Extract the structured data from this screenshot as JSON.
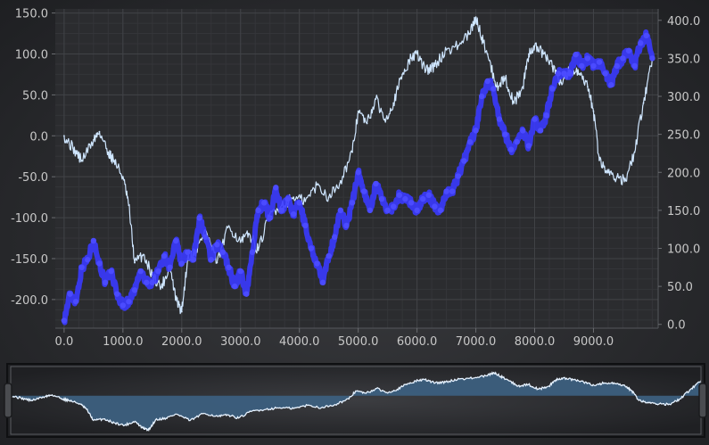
{
  "chart_data": {
    "type": "line",
    "title": "",
    "xlabel": "",
    "ylabel": "",
    "grid": true,
    "legend": "none",
    "x_axis": {
      "range": [
        -150,
        10100
      ],
      "tick_values": [
        0,
        1000,
        2000,
        3000,
        4000,
        5000,
        6000,
        7000,
        8000,
        9000
      ],
      "tick_labels": [
        "0.0",
        "1000.0",
        "2000.0",
        "3000.0",
        "4000.0",
        "5000.0",
        "6000.0",
        "7000.0",
        "8000.0",
        "9000.0"
      ]
    },
    "y_axis_left": {
      "range": [
        -235,
        155
      ],
      "tick_values": [
        150,
        100,
        50,
        0,
        -50,
        -100,
        -150,
        -200
      ],
      "tick_labels": [
        "150.0",
        "100.0",
        "50.0",
        "0.0",
        "-50.0",
        "-100.0",
        "-150.0",
        "-200.0"
      ]
    },
    "y_axis_right": {
      "range": [
        -5,
        415
      ],
      "tick_values": [
        400,
        350,
        300,
        250,
        200,
        150,
        100,
        50,
        0
      ],
      "tick_labels": [
        "400.0",
        "350.0",
        "300.0",
        "250.0",
        "200.0",
        "150.0",
        "100.0",
        "50.0",
        "0.0"
      ]
    },
    "series": [
      {
        "axis": "left",
        "color": "#cfe6ff",
        "style": "line",
        "x": [
          0,
          150,
          300,
          500,
          600,
          750,
          850,
          1000,
          1100,
          1200,
          1350,
          1500,
          1650,
          1800,
          1900,
          2000,
          2100,
          2250,
          2400,
          2600,
          2800,
          3000,
          3150,
          3300,
          3500,
          3700,
          3900,
          4100,
          4300,
          4500,
          4700,
          4900,
          5000,
          5150,
          5300,
          5450,
          5600,
          5750,
          5900,
          6000,
          6150,
          6300,
          6500,
          6700,
          6900,
          7000,
          7100,
          7200,
          7350,
          7500,
          7650,
          7800,
          7900,
          8000,
          8150,
          8300,
          8450,
          8600,
          8750,
          8900,
          9000,
          9100,
          9250,
          9400,
          9550,
          9700,
          9850,
          10000
        ],
        "y": [
          0,
          -15,
          -30,
          -5,
          5,
          -20,
          -30,
          -50,
          -85,
          -155,
          -145,
          -170,
          -185,
          -160,
          -200,
          -215,
          -150,
          -140,
          -115,
          -155,
          -110,
          -130,
          -120,
          -140,
          -95,
          -85,
          -75,
          -80,
          -60,
          -75,
          -55,
          -20,
          30,
          15,
          45,
          20,
          40,
          75,
          95,
          100,
          80,
          85,
          105,
          110,
          125,
          145,
          120,
          100,
          60,
          70,
          40,
          60,
          100,
          110,
          100,
          85,
          65,
          80,
          75,
          60,
          30,
          -30,
          -45,
          -50,
          -55,
          -20,
          40,
          95
        ]
      },
      {
        "axis": "right",
        "color": "#3a3aff",
        "style": "thick-markers",
        "x": [
          0,
          100,
          200,
          300,
          400,
          500,
          600,
          700,
          800,
          900,
          1000,
          1100,
          1200,
          1300,
          1400,
          1500,
          1600,
          1700,
          1800,
          1900,
          2000,
          2100,
          2200,
          2300,
          2400,
          2500,
          2600,
          2700,
          2800,
          2900,
          3000,
          3100,
          3200,
          3300,
          3400,
          3500,
          3600,
          3700,
          3800,
          3900,
          4000,
          4100,
          4200,
          4300,
          4400,
          4500,
          4600,
          4700,
          4800,
          4900,
          5000,
          5100,
          5200,
          5300,
          5400,
          5500,
          5600,
          5700,
          5800,
          5900,
          6000,
          6100,
          6200,
          6300,
          6400,
          6500,
          6600,
          6700,
          6800,
          6900,
          7000,
          7100,
          7200,
          7300,
          7400,
          7500,
          7600,
          7700,
          7800,
          7900,
          8000,
          8100,
          8200,
          8300,
          8400,
          8500,
          8600,
          8700,
          8800,
          8900,
          9000,
          9100,
          9200,
          9300,
          9400,
          9500,
          9600,
          9700,
          9800,
          9900,
          10000
        ],
        "y": [
          5,
          40,
          30,
          75,
          85,
          110,
          80,
          55,
          70,
          40,
          25,
          30,
          45,
          70,
          55,
          55,
          70,
          90,
          75,
          110,
          80,
          95,
          85,
          140,
          115,
          85,
          105,
          95,
          75,
          50,
          70,
          40,
          95,
          150,
          160,
          140,
          180,
          150,
          165,
          145,
          160,
          130,
          100,
          80,
          55,
          90,
          115,
          150,
          130,
          160,
          200,
          175,
          150,
          185,
          165,
          150,
          155,
          170,
          165,
          160,
          150,
          165,
          170,
          155,
          150,
          175,
          175,
          195,
          215,
          240,
          255,
          300,
          320,
          310,
          270,
          250,
          230,
          240,
          255,
          235,
          270,
          255,
          275,
          310,
          330,
          330,
          330,
          355,
          340,
          350,
          340,
          345,
          330,
          315,
          340,
          350,
          360,
          340,
          370,
          380,
          350
        ]
      }
    ],
    "overview": {
      "type": "area",
      "fill": "#3c5f7e",
      "line_color": "#e6f2ff",
      "baseline": 0
    }
  }
}
